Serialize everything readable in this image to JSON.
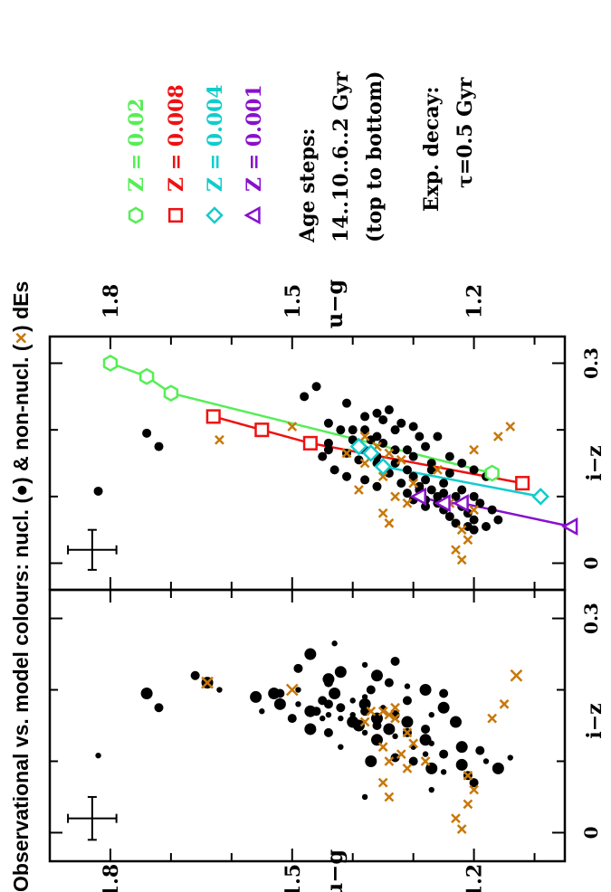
{
  "title": "Observational vs. model colours: nucl. (●) & non-nucl. (×) dEs",
  "title_parts": [
    "Observational vs. model colours: nucl. (",
    ") & non-nucl. (",
    ") dEs"
  ],
  "colors": {
    "nucleated": "#000000",
    "non_nucleated": "#c8780a",
    "z002": "#55ee55",
    "z0008": "#ee1111",
    "z0004": "#11cccc",
    "z0001": "#8811cc"
  },
  "legend": {
    "models": [
      {
        "label": "Z = 0.02",
        "color": "#55ee55",
        "symbol": "hexagon"
      },
      {
        "label": "Z = 0.008",
        "color": "#ee1111",
        "symbol": "square"
      },
      {
        "label": "Z = 0.004",
        "color": "#11cccc",
        "symbol": "diamond"
      },
      {
        "label": "Z = 0.001",
        "color": "#8811cc",
        "symbol": "triangle"
      }
    ],
    "age_note": [
      "Age steps:",
      "14..10..6..2 Gyr",
      "(top to bottom)"
    ],
    "decay_note": [
      "Exp. decay:",
      "τ=0.5 Gyr"
    ]
  },
  "chart_data": {
    "type": "scatter",
    "orientation": "rotated 90 degrees counter-clockwise",
    "xlabel": "i−z",
    "ylabel": "u−g",
    "xlim": [
      -0.04,
      0.34
    ],
    "ylim": [
      1.05,
      1.9
    ],
    "xticks": [
      0,
      0.3
    ],
    "xtick_labels": [
      "0",
      "0.3"
    ],
    "yticks": [
      1.2,
      1.5,
      1.8
    ],
    "ytick_labels": [
      "1.2",
      "1.5",
      "1.8"
    ],
    "error_bar": {
      "x": 0.02,
      "y": 1.83,
      "dx": 0.03,
      "dy": 0.04
    },
    "panels": [
      {
        "name": "observations-sized",
        "nucleated": [
          [
            0.195,
            1.74
          ],
          [
            0.175,
            1.72
          ],
          [
            0.108,
            1.82
          ],
          [
            0.21,
            1.64
          ],
          [
            0.22,
            1.66
          ],
          [
            0.2,
            1.62
          ],
          [
            0.19,
            1.56
          ],
          [
            0.195,
            1.52
          ],
          [
            0.18,
            1.49
          ],
          [
            0.17,
            1.47
          ],
          [
            0.185,
            1.45
          ],
          [
            0.16,
            1.45
          ],
          [
            0.195,
            1.43
          ],
          [
            0.175,
            1.42
          ],
          [
            0.165,
            1.4
          ],
          [
            0.155,
            1.4
          ],
          [
            0.17,
            1.38
          ],
          [
            0.19,
            1.38
          ],
          [
            0.16,
            1.36
          ],
          [
            0.15,
            1.36
          ],
          [
            0.175,
            1.35
          ],
          [
            0.145,
            1.34
          ],
          [
            0.165,
            1.33
          ],
          [
            0.135,
            1.33
          ],
          [
            0.155,
            1.31
          ],
          [
            0.185,
            1.31
          ],
          [
            0.12,
            1.3
          ],
          [
            0.13,
            1.28
          ],
          [
            0.145,
            1.28
          ],
          [
            0.165,
            1.27
          ],
          [
            0.175,
            1.25
          ],
          [
            0.11,
            1.25
          ],
          [
            0.185,
            1.4
          ],
          [
            0.215,
            1.44
          ],
          [
            0.14,
            1.44
          ],
          [
            0.12,
            1.42
          ],
          [
            0.22,
            1.36
          ],
          [
            0.21,
            1.34
          ],
          [
            0.205,
            1.31
          ],
          [
            0.2,
            1.28
          ],
          [
            0.195,
            1.25
          ],
          [
            0.17,
            1.55
          ],
          [
            0.18,
            1.52
          ],
          [
            0.16,
            1.5
          ],
          [
            0.14,
            1.38
          ],
          [
            0.13,
            1.36
          ],
          [
            0.105,
            1.33
          ],
          [
            0.11,
            1.28
          ],
          [
            0.09,
            1.27
          ],
          [
            0.1,
            1.3
          ],
          [
            0.085,
            1.25
          ],
          [
            0.095,
            1.22
          ],
          [
            0.08,
            1.21
          ],
          [
            0.235,
            1.38
          ],
          [
            0.225,
            1.42
          ],
          [
            0.24,
            1.33
          ],
          [
            0.265,
            1.43
          ],
          [
            0.25,
            1.47
          ],
          [
            0.23,
            1.49
          ],
          [
            0.2,
            1.49
          ],
          [
            0.195,
            1.53
          ],
          [
            0.18,
            1.44
          ],
          [
            0.16,
            1.42
          ],
          [
            0.15,
            1.39
          ],
          [
            0.14,
            1.31
          ],
          [
            0.125,
            1.27
          ],
          [
            0.12,
            1.22
          ],
          [
            0.115,
            1.19
          ],
          [
            0.1,
            1.18
          ],
          [
            0.09,
            1.16
          ],
          [
            0.07,
            1.2
          ],
          [
            0.06,
            1.27
          ],
          [
            0.155,
            1.23
          ],
          [
            0.17,
            1.46
          ],
          [
            0.105,
            1.14
          ],
          [
            0.18,
            1.38
          ],
          [
            0.2,
            1.37
          ],
          [
            0.165,
            1.44
          ],
          [
            0.145,
            1.47
          ],
          [
            0.21,
            1.44
          ],
          [
            0.05,
            1.38
          ],
          [
            0.1,
            1.37
          ]
        ],
        "non_nucleated": [
          [
            0.2,
            1.5
          ],
          [
            0.21,
            1.64
          ],
          [
            0.17,
            1.35
          ],
          [
            0.165,
            1.34
          ],
          [
            0.16,
            1.33
          ],
          [
            0.14,
            1.31
          ],
          [
            0.12,
            1.35
          ],
          [
            0.11,
            1.32
          ],
          [
            0.1,
            1.34
          ],
          [
            0.17,
            1.37
          ],
          [
            0.155,
            1.38
          ],
          [
            0.175,
            1.33
          ],
          [
            0.125,
            1.3
          ],
          [
            0.09,
            1.31
          ],
          [
            0.07,
            1.35
          ],
          [
            0.05,
            1.34
          ],
          [
            0.08,
            1.21
          ],
          [
            0.06,
            1.2
          ],
          [
            0.04,
            1.21
          ],
          [
            0.02,
            1.23
          ],
          [
            0.005,
            1.22
          ],
          [
            0.22,
            1.13
          ],
          [
            0.16,
            1.17
          ],
          [
            0.18,
            1.15
          ],
          [
            0.1,
            1.28
          ]
        ]
      },
      {
        "name": "observations-vs-models",
        "nucleated": [
          [
            0.195,
            1.74
          ],
          [
            0.175,
            1.72
          ],
          [
            0.108,
            1.82
          ],
          [
            0.185,
            1.4
          ],
          [
            0.21,
            1.44
          ],
          [
            0.2,
            1.38
          ],
          [
            0.19,
            1.36
          ],
          [
            0.18,
            1.35
          ],
          [
            0.17,
            1.38
          ],
          [
            0.165,
            1.41
          ],
          [
            0.16,
            1.36
          ],
          [
            0.155,
            1.39
          ],
          [
            0.15,
            1.33
          ],
          [
            0.145,
            1.35
          ],
          [
            0.14,
            1.31
          ],
          [
            0.135,
            1.34
          ],
          [
            0.13,
            1.3
          ],
          [
            0.125,
            1.28
          ],
          [
            0.12,
            1.32
          ],
          [
            0.115,
            1.29
          ],
          [
            0.11,
            1.27
          ],
          [
            0.105,
            1.25
          ],
          [
            0.1,
            1.23
          ],
          [
            0.095,
            1.28
          ],
          [
            0.09,
            1.26
          ],
          [
            0.085,
            1.22
          ],
          [
            0.08,
            1.25
          ],
          [
            0.075,
            1.21
          ],
          [
            0.07,
            1.24
          ],
          [
            0.065,
            1.2
          ],
          [
            0.06,
            1.23
          ],
          [
            0.055,
            1.21
          ],
          [
            0.05,
            1.2
          ],
          [
            0.16,
            1.45
          ],
          [
            0.18,
            1.44
          ],
          [
            0.2,
            1.42
          ],
          [
            0.22,
            1.38
          ],
          [
            0.215,
            1.35
          ],
          [
            0.21,
            1.32
          ],
          [
            0.205,
            1.3
          ],
          [
            0.19,
            1.29
          ],
          [
            0.175,
            1.28
          ],
          [
            0.17,
            1.31
          ],
          [
            0.15,
            1.27
          ],
          [
            0.135,
            1.24
          ],
          [
            0.12,
            1.25
          ],
          [
            0.11,
            1.22
          ],
          [
            0.1,
            1.2
          ],
          [
            0.09,
            1.19
          ],
          [
            0.08,
            1.17
          ],
          [
            0.065,
            1.16
          ],
          [
            0.055,
            1.18
          ],
          [
            0.18,
            1.47
          ],
          [
            0.17,
            1.44
          ],
          [
            0.14,
            1.43
          ],
          [
            0.13,
            1.41
          ],
          [
            0.125,
            1.38
          ],
          [
            0.115,
            1.36
          ],
          [
            0.23,
            1.34
          ],
          [
            0.225,
            1.36
          ],
          [
            0.24,
            1.41
          ],
          [
            0.265,
            1.46
          ],
          [
            0.25,
            1.48
          ],
          [
            0.2,
            1.33
          ],
          [
            0.19,
            1.26
          ],
          [
            0.16,
            1.24
          ],
          [
            0.15,
            1.22
          ],
          [
            0.14,
            1.2
          ],
          [
            0.13,
            1.18
          ],
          [
            0.105,
            1.31
          ],
          [
            0.095,
            1.3
          ],
          [
            0.085,
            1.28
          ],
          [
            0.1,
            1.26
          ],
          [
            0.2,
            1.4
          ],
          [
            0.185,
            1.37
          ],
          [
            0.16,
            1.3
          ],
          [
            0.14,
            1.27
          ],
          [
            0.11,
            1.29
          ],
          [
            0.17,
            1.33
          ],
          [
            0.15,
            1.36
          ]
        ],
        "non_nucleated": [
          [
            0.205,
            1.5
          ],
          [
            0.185,
            1.62
          ],
          [
            0.19,
            1.38
          ],
          [
            0.175,
            1.36
          ],
          [
            0.165,
            1.34
          ],
          [
            0.155,
            1.32
          ],
          [
            0.15,
            1.38
          ],
          [
            0.13,
            1.35
          ],
          [
            0.12,
            1.3
          ],
          [
            0.1,
            1.33
          ],
          [
            0.09,
            1.31
          ],
          [
            0.075,
            1.35
          ],
          [
            0.06,
            1.34
          ],
          [
            0.05,
            1.22
          ],
          [
            0.035,
            1.21
          ],
          [
            0.02,
            1.23
          ],
          [
            0.005,
            1.22
          ],
          [
            0.205,
            1.14
          ],
          [
            0.19,
            1.16
          ],
          [
            0.17,
            1.2
          ],
          [
            0.09,
            1.24
          ],
          [
            0.08,
            1.2
          ],
          [
            0.165,
            1.41
          ],
          [
            0.14,
            1.26
          ],
          [
            0.11,
            1.39
          ]
        ],
        "series": [
          {
            "name": "Z = 0.02",
            "color": "#55ee55",
            "marker": "hexagon",
            "ages_gyr": [
              14,
              10,
              6,
              2
            ],
            "points": [
              [
                0.3,
                1.8
              ],
              [
                0.28,
                1.74
              ],
              [
                0.255,
                1.7
              ],
              [
                0.135,
                1.17
              ]
            ]
          },
          {
            "name": "Z = 0.008",
            "color": "#ee1111",
            "marker": "square",
            "ages_gyr": [
              14,
              10,
              6,
              2
            ],
            "points": [
              [
                0.22,
                1.63
              ],
              [
                0.2,
                1.55
              ],
              [
                0.18,
                1.47
              ],
              [
                0.12,
                1.12
              ]
            ]
          },
          {
            "name": "Z = 0.004",
            "color": "#11cccc",
            "marker": "diamond",
            "ages_gyr": [
              14,
              10,
              6,
              2
            ],
            "points": [
              [
                0.175,
                1.39
              ],
              [
                0.165,
                1.37
              ],
              [
                0.145,
                1.35
              ],
              [
                0.1,
                1.09
              ]
            ]
          },
          {
            "name": "Z = 0.001",
            "color": "#8811cc",
            "marker": "triangle",
            "ages_gyr": [
              14,
              10,
              6,
              2
            ],
            "points": [
              [
                0.1,
                1.29
              ],
              [
                0.09,
                1.25
              ],
              [
                0.09,
                1.22
              ],
              [
                0.055,
                1.04
              ]
            ]
          }
        ]
      }
    ]
  }
}
